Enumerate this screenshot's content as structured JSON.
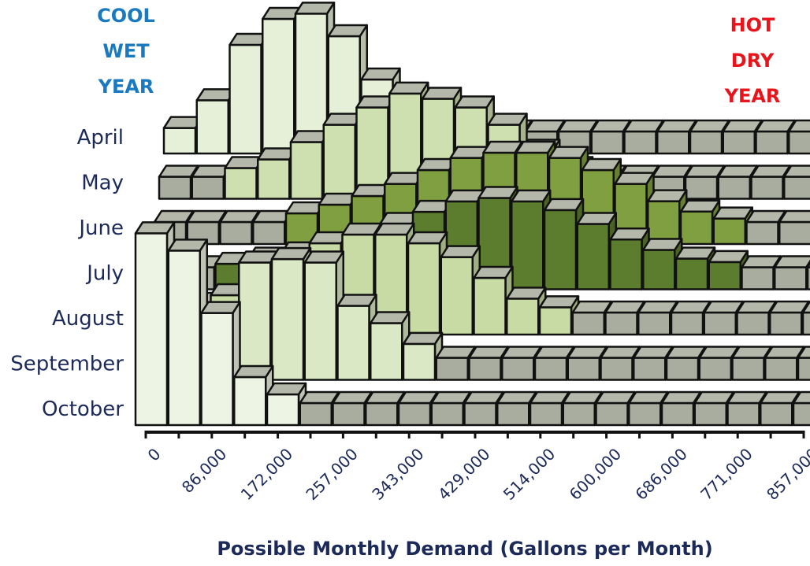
{
  "chart_data": {
    "type": "bar3d",
    "xlabel": "Possible Monthly Demand (Gallons per Month)",
    "annotations": [
      "COOL WET YEAR",
      "HOT DRY YEAR"
    ],
    "annotation_colors": [
      "#1a7abf",
      "#e8141b"
    ],
    "x": [
      0,
      42850,
      85700,
      128550,
      171400,
      214250,
      257100,
      299950,
      342800,
      385650,
      428500,
      471350,
      514200,
      557050,
      599900,
      642750,
      685600,
      728450,
      771300,
      814150,
      857000
    ],
    "xlim": [
      0,
      857000
    ],
    "xticks": [
      0,
      {
        "value": 86000,
        "label": "86,000"
      },
      {
        "value": 172000,
        "label": "172,000"
      },
      {
        "value": 257000,
        "label": "257,000"
      },
      {
        "value": 343000,
        "label": "343,000"
      },
      {
        "value": 429000,
        "label": "429,000"
      },
      {
        "value": 514000,
        "label": "514,000"
      },
      {
        "value": 600000,
        "label": "600,000"
      },
      {
        "value": 686000,
        "label": "686,000"
      },
      {
        "value": 771000,
        "label": "771,000"
      },
      {
        "value": 857000,
        "label": "857,000"
      }
    ],
    "ylim": [
      0,
      100
    ],
    "series": [
      {
        "name": "April",
        "color": "#e6f0d8",
        "values": [
          2,
          18,
          50,
          65,
          68,
          55,
          30,
          10,
          0,
          0,
          0,
          0,
          0,
          0,
          0,
          0,
          0,
          0,
          0,
          0,
          0
        ]
      },
      {
        "name": "May",
        "color": "#cfe0b0",
        "values": [
          0,
          0,
          5,
          10,
          20,
          30,
          40,
          48,
          45,
          40,
          30,
          15,
          5,
          0,
          0,
          0,
          0,
          0,
          0,
          0,
          0
        ]
      },
      {
        "name": "June",
        "color": "#7f9f40",
        "values": [
          0,
          0,
          0,
          0,
          5,
          10,
          15,
          22,
          30,
          37,
          40,
          40,
          37,
          30,
          22,
          12,
          6,
          2,
          0,
          0,
          0
        ]
      },
      {
        "name": "July",
        "color": "#5c7c2e",
        "values": [
          0,
          0,
          2,
          5,
          8,
          12,
          18,
          25,
          32,
          38,
          40,
          38,
          33,
          25,
          16,
          10,
          5,
          3,
          0,
          0,
          0
        ]
      },
      {
        "name": "August",
        "color": "#c8dba4",
        "values": [
          0,
          5,
          10,
          20,
          30,
          40,
          45,
          45,
          40,
          32,
          20,
          8,
          3,
          0,
          0,
          0,
          0,
          0,
          0,
          0,
          0
        ]
      },
      {
        "name": "September",
        "color": "#dbe8c6",
        "values": [
          14,
          10,
          20,
          55,
          57,
          55,
          30,
          20,
          8,
          0,
          0,
          0,
          0,
          0,
          0,
          0,
          0,
          0,
          0,
          0,
          0
        ]
      },
      {
        "name": "October",
        "color": "#eef4e4",
        "values": [
          98,
          88,
          52,
          15,
          5,
          0,
          0,
          0,
          0,
          0,
          0,
          0,
          0,
          0,
          0,
          0,
          0,
          0,
          0,
          0,
          0
        ]
      }
    ]
  }
}
